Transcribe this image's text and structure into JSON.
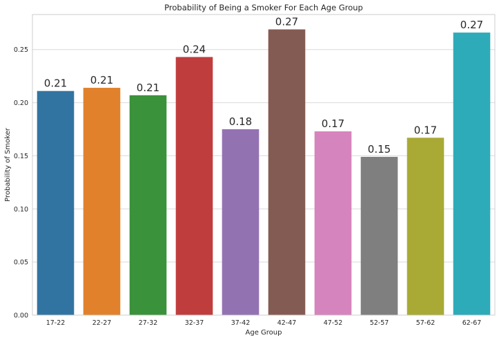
{
  "chart_data": {
    "type": "bar",
    "title": "Probability of Being a Smoker For Each Age Group",
    "xlabel": "Age Group",
    "ylabel": "Probability of Smoker",
    "categories": [
      "17-22",
      "22-27",
      "27-32",
      "32-37",
      "37-42",
      "42-47",
      "47-52",
      "52-57",
      "57-62",
      "62-67"
    ],
    "values": [
      0.211,
      0.214,
      0.207,
      0.243,
      0.175,
      0.269,
      0.173,
      0.149,
      0.167,
      0.266
    ],
    "data_labels": [
      "0.21",
      "0.21",
      "0.21",
      "0.24",
      "0.18",
      "0.27",
      "0.17",
      "0.15",
      "0.17",
      "0.27"
    ],
    "colors": [
      "#3274a1",
      "#e1812c",
      "#3a923a",
      "#c03d3e",
      "#9372b2",
      "#845b53",
      "#d684bd",
      "#7f7f7f",
      "#a9aa35",
      "#2eabb8"
    ],
    "ylim": [
      0,
      0.283
    ],
    "yticks": [
      0.0,
      0.05,
      0.1,
      0.15,
      0.2,
      0.25
    ],
    "ytick_labels": [
      "0.00",
      "0.05",
      "0.10",
      "0.15",
      "0.20",
      "0.25"
    ],
    "grid": "horizontal",
    "legend": "none"
  }
}
